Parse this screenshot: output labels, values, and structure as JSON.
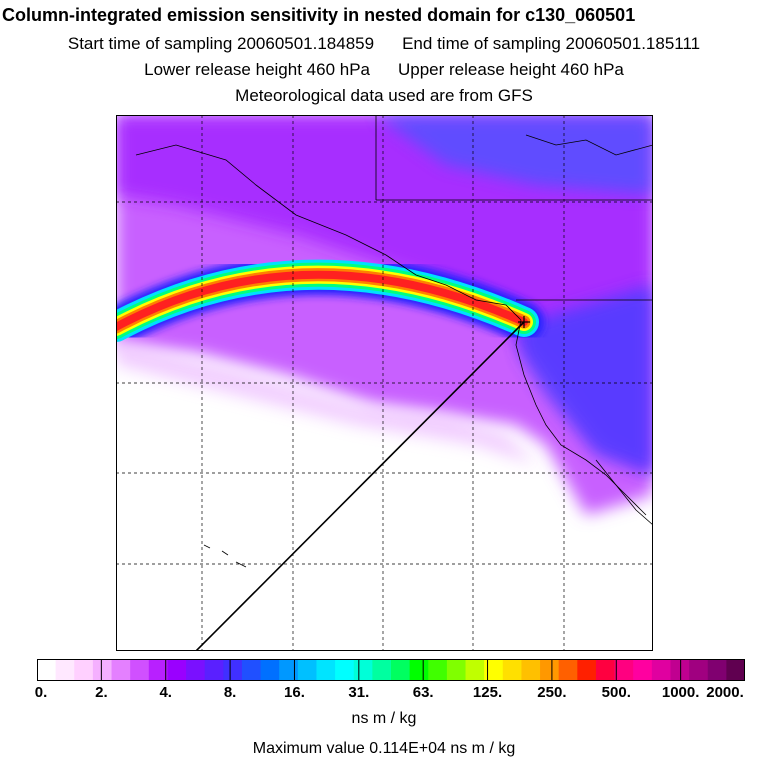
{
  "header": {
    "title": "Column-integrated emission sensitivity in nested domain for c130_060501",
    "start_label": "Start time of sampling 20060501.184859",
    "end_label": "End time of sampling 20060501.185111",
    "lower_label": "Lower release height  460 hPa",
    "upper_label": "Upper release height  460 hPa",
    "met_label": "Meteorological data used are from GFS"
  },
  "colorbar": {
    "ticks": [
      "0.",
      "2.",
      "4.",
      "8.",
      "16.",
      "31.",
      "63.",
      "125.",
      "250.",
      "500.",
      "1000.",
      "2000."
    ],
    "tick_values": [
      0,
      2,
      4,
      8,
      16,
      31,
      63,
      125,
      250,
      500,
      1000,
      2000
    ],
    "units": "ns m / kg",
    "colors": [
      "#ffffff",
      "#ffe8ff",
      "#ffd0ff",
      "#f5b0ff",
      "#e480ff",
      "#d050ff",
      "#b820ff",
      "#9a00ff",
      "#7a10ff",
      "#5a20ff",
      "#4030ff",
      "#2050ff",
      "#0070ff",
      "#0098ff",
      "#00c0ff",
      "#00e4ff",
      "#00ffff",
      "#00ffd8",
      "#00ffa0",
      "#00ff60",
      "#00ff00",
      "#40ff00",
      "#80ff00",
      "#c0ff00",
      "#ffff00",
      "#ffe000",
      "#ffc000",
      "#ff9800",
      "#ff6000",
      "#ff2000",
      "#ff0040",
      "#ff0080",
      "#ff00a0",
      "#e000a0",
      "#c00090",
      "#a00080",
      "#800070",
      "#600050"
    ]
  },
  "footer": {
    "max_value_label": "Maximum value  0.114E+04 ns m / kg"
  }
}
